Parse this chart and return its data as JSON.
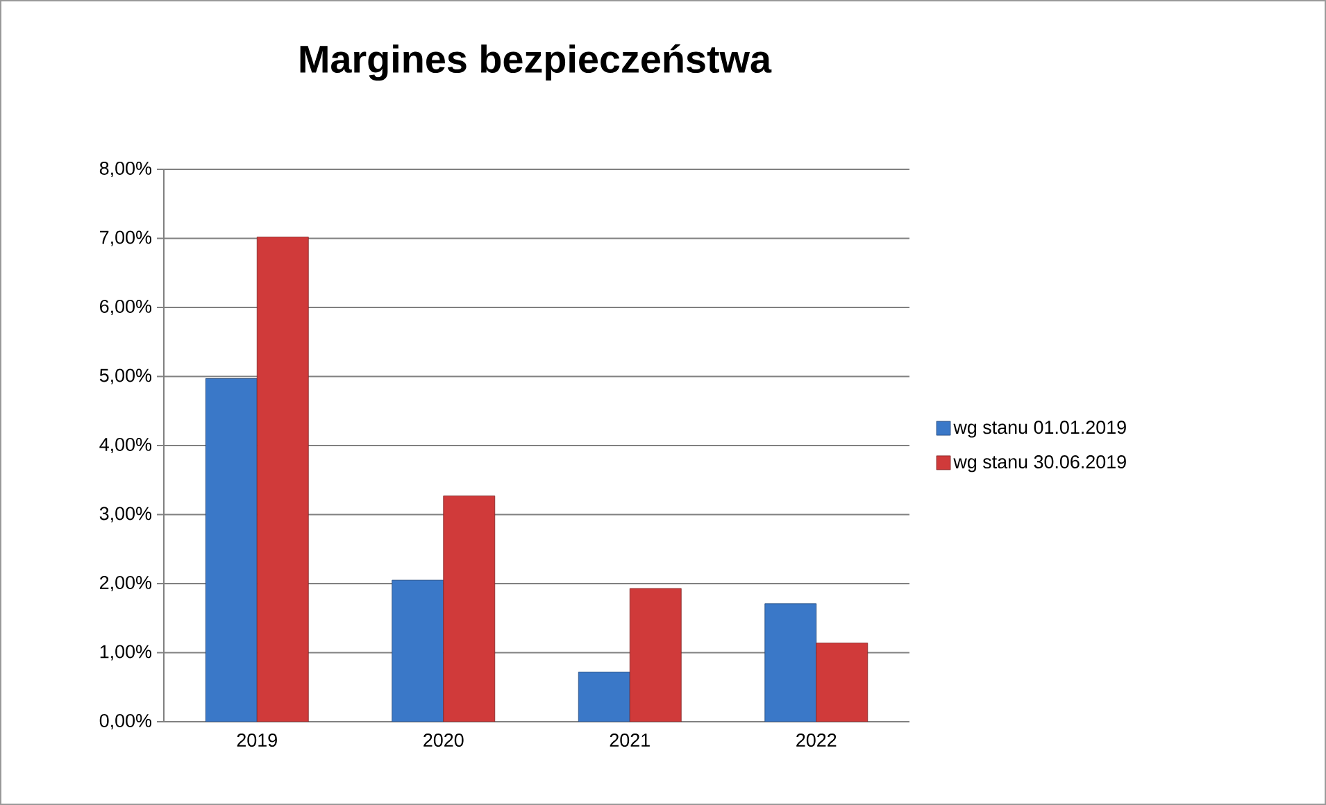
{
  "chart_data": {
    "type": "bar",
    "title": "Margines bezpieczeństwa",
    "categories": [
      "2019",
      "2020",
      "2021",
      "2022"
    ],
    "series": [
      {
        "name": "wg stanu 01.01.2019",
        "color": "#3a78c8",
        "values": [
          4.97,
          2.05,
          0.72,
          1.71
        ]
      },
      {
        "name": "wg stanu 30.06.2019",
        "color": "#d03a3a",
        "values": [
          7.02,
          3.27,
          1.93,
          1.14
        ]
      }
    ],
    "ylim": [
      0,
      8
    ],
    "yticks": [
      {
        "value": 0,
        "label": "0,00%"
      },
      {
        "value": 1,
        "label": "1,00%"
      },
      {
        "value": 2,
        "label": "2,00%"
      },
      {
        "value": 3,
        "label": "3,00%"
      },
      {
        "value": 4,
        "label": "4,00%"
      },
      {
        "value": 5,
        "label": "5,00%"
      },
      {
        "value": 6,
        "label": "6,00%"
      },
      {
        "value": 7,
        "label": "7,00%"
      },
      {
        "value": 8,
        "label": "8,00%"
      }
    ],
    "grid": "y",
    "legend": "right"
  }
}
